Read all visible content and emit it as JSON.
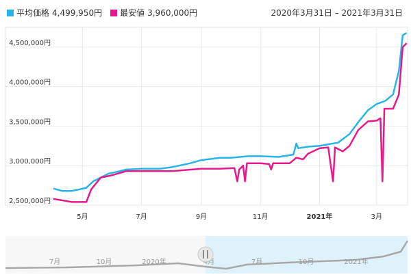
{
  "legend": [
    {
      "label": "平均価格",
      "value": "4,499,950円",
      "color": "#28b4e6"
    },
    {
      "label": "最安値",
      "value": "3,960,000円",
      "color": "#e6198c"
    }
  ],
  "range_text": "2020年3月31日 – 2021年3月31日",
  "navigator": {
    "labels": [
      "7月",
      "10月",
      "2020年",
      "4月",
      "7月",
      "10月",
      "2021年"
    ],
    "handle_icon": "pause-handle-icon"
  },
  "chart_data": {
    "type": "line",
    "y_ticks": [
      "2,500,000円",
      "3,000,000円",
      "3,500,000円",
      "4,000,000円",
      "4,500,000円"
    ],
    "x_ticks": [
      "5月",
      "7月",
      "9月",
      "11月",
      "2021年",
      "3月"
    ],
    "ylim": [
      2500000,
      4750000
    ],
    "xlim": [
      "2020-04-01",
      "2021-04-02"
    ],
    "grid": true,
    "series": [
      {
        "name": "平均価格",
        "color": "#28b4e6",
        "points": [
          [
            "2020-04-01",
            2710000
          ],
          [
            "2020-04-10",
            2680000
          ],
          [
            "2020-04-20",
            2680000
          ],
          [
            "2020-04-28",
            2700000
          ],
          [
            "2020-05-05",
            2720000
          ],
          [
            "2020-05-12",
            2800000
          ],
          [
            "2020-05-20",
            2850000
          ],
          [
            "2020-05-28",
            2900000
          ],
          [
            "2020-06-05",
            2920000
          ],
          [
            "2020-06-15",
            2950000
          ],
          [
            "2020-07-01",
            2960000
          ],
          [
            "2020-07-20",
            2960000
          ],
          [
            "2020-08-01",
            2980000
          ],
          [
            "2020-08-20",
            3030000
          ],
          [
            "2020-09-01",
            3070000
          ],
          [
            "2020-09-20",
            3100000
          ],
          [
            "2020-10-01",
            3100000
          ],
          [
            "2020-10-20",
            3120000
          ],
          [
            "2020-11-01",
            3120000
          ],
          [
            "2020-11-20",
            3110000
          ],
          [
            "2020-12-05",
            3140000
          ],
          [
            "2020-12-08",
            3280000
          ],
          [
            "2020-12-10",
            3220000
          ],
          [
            "2020-12-20",
            3240000
          ],
          [
            "2021-01-01",
            3250000
          ],
          [
            "2021-01-10",
            3270000
          ],
          [
            "2021-01-20",
            3290000
          ],
          [
            "2021-02-01",
            3400000
          ],
          [
            "2021-02-10",
            3550000
          ],
          [
            "2021-02-20",
            3700000
          ],
          [
            "2021-03-01",
            3780000
          ],
          [
            "2021-03-10",
            3820000
          ],
          [
            "2021-03-18",
            3900000
          ],
          [
            "2021-03-24",
            4200000
          ],
          [
            "2021-03-28",
            4650000
          ],
          [
            "2021-04-01",
            4680000
          ]
        ]
      },
      {
        "name": "最安値",
        "color": "#e6198c",
        "points": [
          [
            "2020-04-01",
            2580000
          ],
          [
            "2020-04-20",
            2540000
          ],
          [
            "2020-05-05",
            2540000
          ],
          [
            "2020-05-10",
            2700000
          ],
          [
            "2020-05-20",
            2850000
          ],
          [
            "2020-06-01",
            2880000
          ],
          [
            "2020-06-15",
            2930000
          ],
          [
            "2020-07-15",
            2930000
          ],
          [
            "2020-08-01",
            2930000
          ],
          [
            "2020-09-01",
            2960000
          ],
          [
            "2020-09-20",
            2960000
          ],
          [
            "2020-10-05",
            2970000
          ],
          [
            "2020-10-08",
            2800000
          ],
          [
            "2020-10-10",
            2950000
          ],
          [
            "2020-10-14",
            3000000
          ],
          [
            "2020-10-16",
            2800000
          ],
          [
            "2020-10-18",
            3030000
          ],
          [
            "2020-11-01",
            3030000
          ],
          [
            "2020-11-10",
            3020000
          ],
          [
            "2020-11-12",
            2950000
          ],
          [
            "2020-11-14",
            3030000
          ],
          [
            "2020-12-01",
            3030000
          ],
          [
            "2020-12-08",
            3100000
          ],
          [
            "2020-12-15",
            3080000
          ],
          [
            "2020-12-20",
            3150000
          ],
          [
            "2021-01-01",
            3220000
          ],
          [
            "2021-01-10",
            3230000
          ],
          [
            "2021-01-15",
            2800000
          ],
          [
            "2021-01-17",
            3230000
          ],
          [
            "2021-01-25",
            3180000
          ],
          [
            "2021-02-01",
            3250000
          ],
          [
            "2021-02-10",
            3450000
          ],
          [
            "2021-02-20",
            3560000
          ],
          [
            "2021-03-01",
            3570000
          ],
          [
            "2021-03-05",
            3600000
          ],
          [
            "2021-03-07",
            2800000
          ],
          [
            "2021-03-09",
            3720000
          ],
          [
            "2021-03-18",
            3720000
          ],
          [
            "2021-03-24",
            3900000
          ],
          [
            "2021-03-28",
            4500000
          ],
          [
            "2021-04-01",
            4550000
          ]
        ]
      }
    ]
  }
}
